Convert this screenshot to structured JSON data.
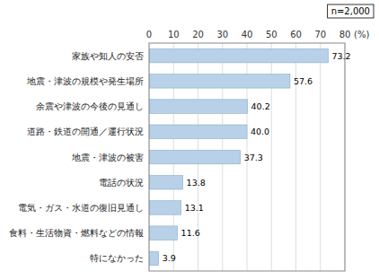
{
  "chart_data": {
    "type": "bar",
    "orientation": "horizontal",
    "x_label": "(%)",
    "annotation": "n=2,000",
    "categories": [
      "特になかった",
      "食料・生活物資・燃料などの情報",
      "電気・ガス・水道の復旧見通し",
      "電話の状況",
      "地震・津波の被害",
      "道路・鉄道の開通／運行状況",
      "余震や津波の今後の見通し",
      "地震・津波の規模や発生場所",
      "家族や知人の安否"
    ],
    "values": [
      3.9,
      11.6,
      13.1,
      13.8,
      37.3,
      40.0,
      40.2,
      57.6,
      73.2
    ],
    "value_labels": [
      "3.9",
      "11.6",
      "13.1",
      "13.8",
      "37.3",
      "40.0",
      "40.2",
      "57.6",
      "73.2"
    ],
    "color": "#b8d0e8",
    "xlim": [
      0,
      80
    ],
    "xticks": [
      0,
      10,
      20,
      30,
      40,
      50,
      60,
      70,
      80
    ],
    "grid": true,
    "data_labels": true
  }
}
